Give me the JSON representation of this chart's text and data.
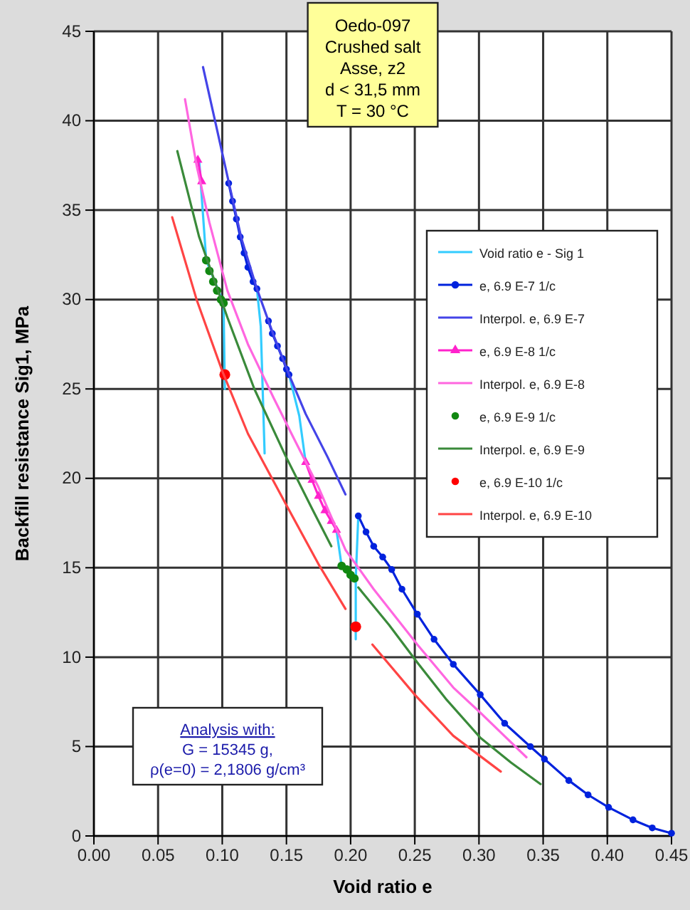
{
  "chart_data": {
    "type": "line",
    "xlabel": "Void ratio e",
    "ylabel": "Backfill resistance Sig1, MPa",
    "xlim": [
      0,
      0.45
    ],
    "xticks": [
      {
        "value": 0,
        "label": "0.00"
      },
      {
        "value": 0.05,
        "label": "0.05"
      },
      {
        "value": 0.1,
        "label": "0.10"
      },
      {
        "value": 0.15,
        "label": "0.15"
      },
      {
        "value": 0.2,
        "label": "0.20"
      },
      {
        "value": 0.25,
        "label": "0.25"
      },
      {
        "value": 0.3,
        "label": "0.30"
      },
      {
        "value": 0.35,
        "label": "0.35"
      },
      {
        "value": 0.4,
        "label": "0.40"
      },
      {
        "value": 0.45,
        "label": "0.45"
      }
    ],
    "ylim": [
      0,
      45
    ],
    "yticks": [
      0,
      5,
      10,
      15,
      20,
      25,
      30,
      35,
      40,
      45
    ],
    "grid": true,
    "legend": "right",
    "annotations": [
      "Oedo-097\nCrushed salt\nAsse, z2\nd < 31,5 mm\nT = 30 °C",
      "Analysis with:\nG = 15345 g,\nρ(e=0) = 2,1806 g/cm³"
    ],
    "series": [
      {
        "name": "Void ratio e - Sig 1",
        "marker": "none",
        "color": "#33ccff",
        "x": [
          0.082,
          0.0875,
          0.101,
          0.102,
          null,
          0.127,
          0.13,
          0.133,
          null,
          0.152,
          0.16,
          0.164,
          0.165,
          null,
          0.189,
          0.193,
          null,
          0.206,
          0.204,
          0.204
        ],
        "values": [
          37.8,
          32.2,
          29.8,
          25.0,
          null,
          30.6,
          28.5,
          21.4,
          null,
          25.8,
          23.5,
          21.4,
          20.9,
          null,
          17.1,
          15.1,
          null,
          17.9,
          14.4,
          11.0
        ]
      },
      {
        "name": "e, 6.9 E-7  1/c",
        "marker": "circle",
        "color": "#0022dd",
        "x": [
          0.105,
          0.108,
          0.111,
          0.114,
          0.117,
          0.12,
          0.124,
          0.127,
          null,
          0.136,
          0.139,
          0.143,
          0.147,
          0.15,
          0.152,
          null,
          0.206,
          0.212,
          0.218,
          0.225,
          0.232,
          0.24,
          0.252,
          0.265,
          0.28,
          0.301,
          0.32,
          0.34,
          0.351,
          0.37,
          0.385,
          0.401,
          0.42,
          0.435,
          0.45
        ],
        "values": [
          36.5,
          35.5,
          34.5,
          33.5,
          32.6,
          31.8,
          31.0,
          30.6,
          null,
          28.8,
          28.1,
          27.4,
          26.7,
          26.1,
          25.8,
          null,
          17.9,
          17.0,
          16.2,
          15.6,
          14.9,
          13.8,
          12.4,
          11.0,
          9.6,
          7.9,
          6.3,
          5.0,
          4.3,
          3.1,
          2.3,
          1.6,
          0.9,
          0.45,
          0.15
        ]
      },
      {
        "name": "Interpol. e, 6.9 E-7",
        "marker": "none",
        "color": "#4444e8",
        "x": [
          0.085,
          0.095,
          0.104,
          0.115,
          0.127,
          0.14,
          0.152,
          0.165,
          0.182,
          0.196
        ],
        "values": [
          43.0,
          39.8,
          36.9,
          33.4,
          30.6,
          28.0,
          25.8,
          23.6,
          21.2,
          19.1
        ]
      },
      {
        "name": "e, 6.9 E-8  1/c",
        "marker": "triangle",
        "color": "#ff22cc",
        "x": [
          0.081,
          0.084,
          null,
          0.165,
          0.17,
          0.175,
          0.18,
          0.185,
          0.189
        ],
        "values": [
          37.8,
          36.6,
          null,
          20.9,
          19.9,
          19.0,
          18.2,
          17.6,
          17.1
        ]
      },
      {
        "name": "Interpol. e, 6.9 E-8",
        "marker": "none",
        "color": "#ff66e0",
        "x": [
          0.071,
          0.08,
          0.09,
          0.104,
          0.12,
          0.14,
          0.156,
          0.175,
          0.196,
          0.218,
          0.252,
          0.28,
          0.301,
          0.337
        ],
        "values": [
          41.2,
          37.5,
          34.3,
          30.5,
          27.5,
          24.5,
          22.2,
          19.5,
          16.0,
          13.8,
          10.7,
          8.3,
          6.9,
          4.4
        ]
      },
      {
        "name": "e, 6.9 E-9  1/c",
        "type": "scatter",
        "marker": "circle",
        "color": "#118811",
        "x": [
          0.0875,
          0.09,
          0.093,
          0.096,
          0.099,
          0.101,
          0.193,
          0.197,
          0.2,
          0.203
        ],
        "values": [
          32.2,
          31.6,
          31.0,
          30.5,
          30.0,
          29.8,
          15.1,
          14.9,
          14.6,
          14.4
        ]
      },
      {
        "name": "Interpol. e, 6.9 E-9",
        "marker": "none",
        "color": "#3a8a3a",
        "x": [
          0.065,
          0.082,
          0.104,
          0.125,
          0.149,
          0.17,
          0.185,
          null,
          0.206,
          0.23,
          0.252,
          0.275,
          0.301,
          0.325,
          0.348
        ],
        "values": [
          38.3,
          33.5,
          29.0,
          25.0,
          21.3,
          18.3,
          16.2,
          null,
          13.9,
          11.8,
          9.7,
          7.6,
          5.5,
          4.1,
          2.9
        ]
      },
      {
        "name": "e, 6.9 E-10  1/c",
        "type": "scatter",
        "marker": "circle",
        "color": "#ff0000",
        "x": [
          0.102,
          0.204
        ],
        "values": [
          25.8,
          11.7
        ]
      },
      {
        "name": "Interpol. e, 6.9 E-10",
        "marker": "none",
        "color": "#ff4444",
        "x": [
          0.061,
          0.08,
          0.1,
          0.12,
          0.15,
          0.175,
          0.196,
          null,
          0.217,
          0.25,
          0.28,
          0.317
        ],
        "values": [
          34.6,
          30.0,
          26.0,
          22.5,
          18.5,
          15.2,
          12.7,
          null,
          10.7,
          7.9,
          5.6,
          3.6
        ]
      }
    ]
  }
}
